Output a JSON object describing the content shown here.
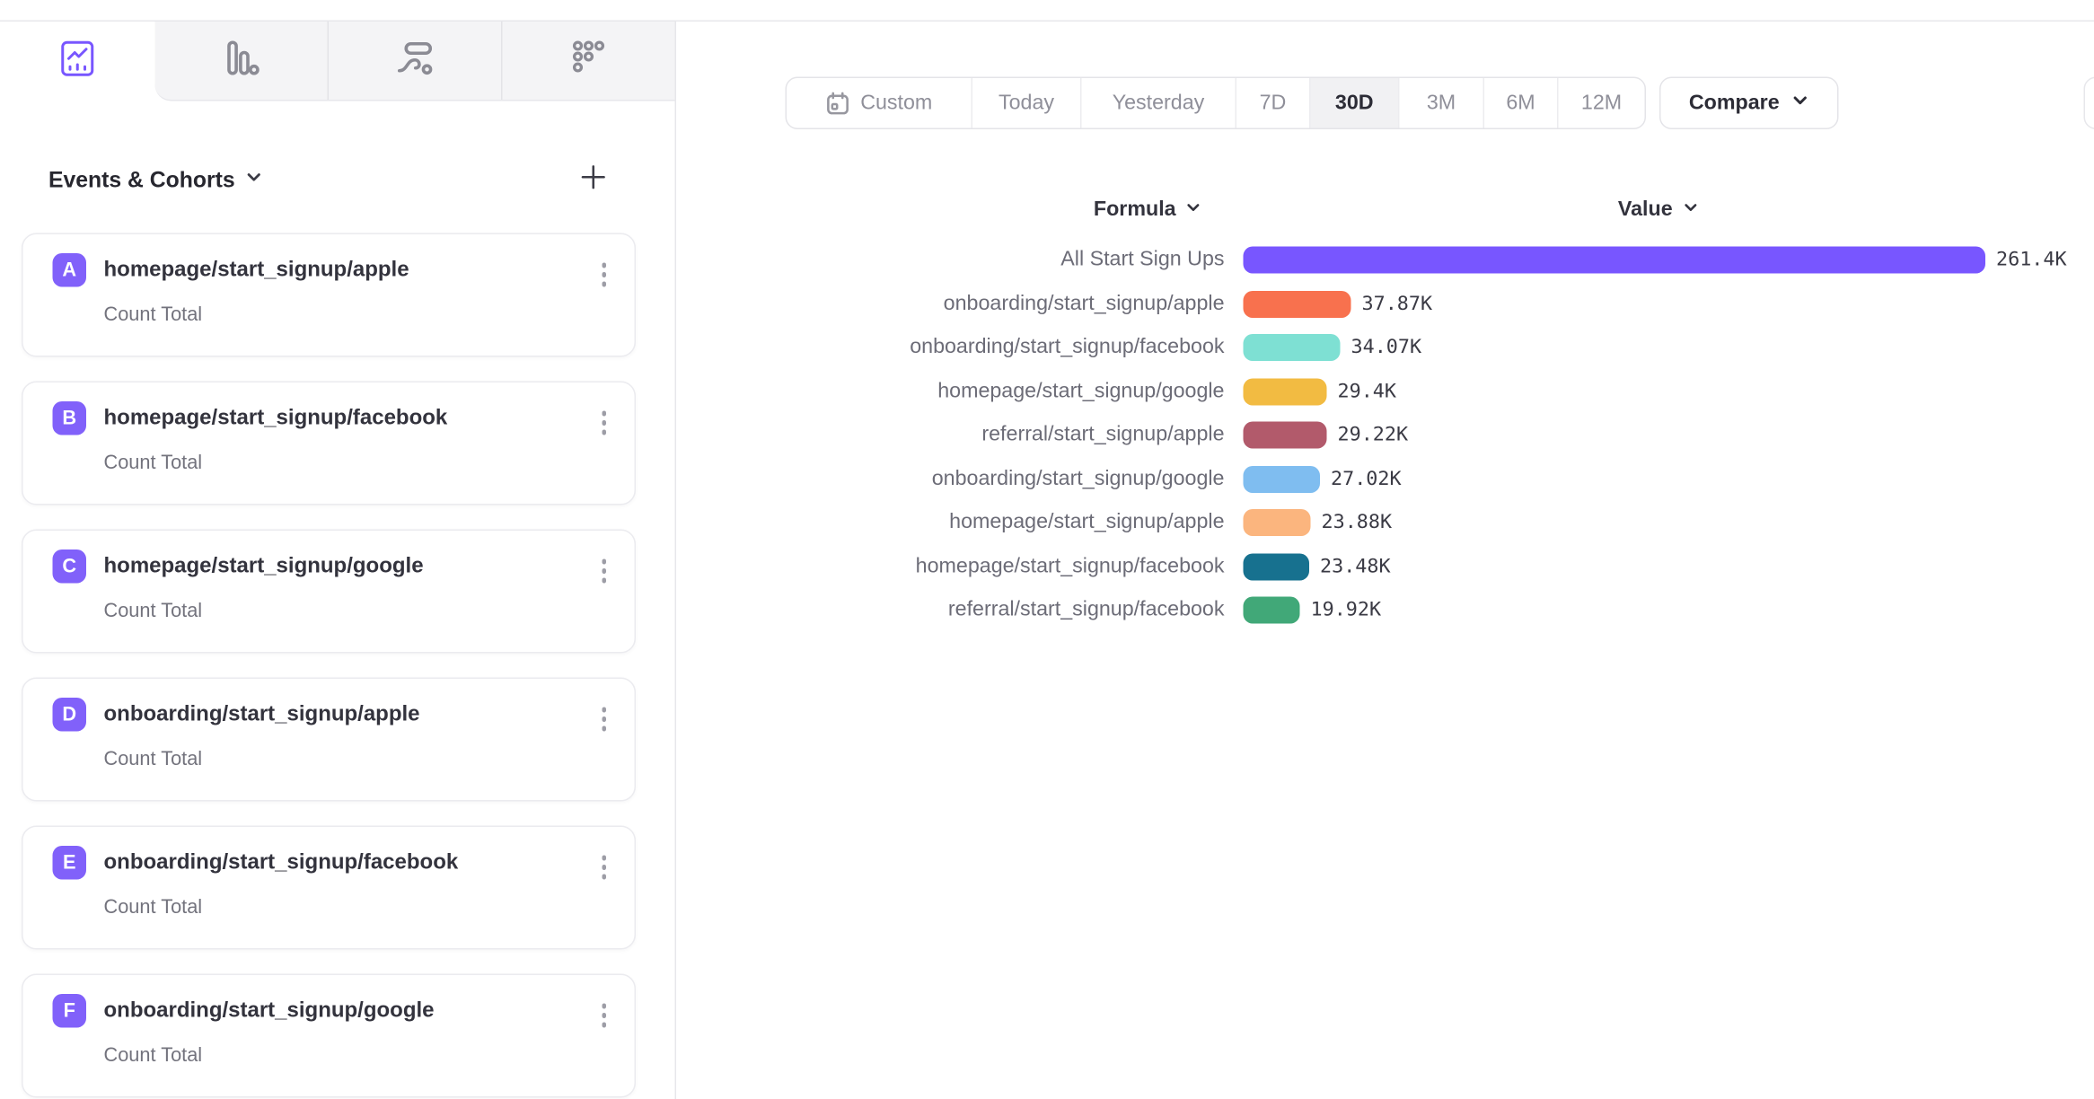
{
  "accent_color": "#7856FF",
  "chart_type_tabs": {
    "items": [
      {
        "icon": "insights-line-chart-icon",
        "active": true
      },
      {
        "icon": "bar-chart-icon",
        "active": false
      },
      {
        "icon": "flow-sankey-icon",
        "active": false
      },
      {
        "icon": "metrics-grid-icon",
        "active": false
      }
    ]
  },
  "sidebar": {
    "title": "Events & Cohorts",
    "cards": [
      {
        "letter": "A",
        "title": "homepage/start_signup/apple",
        "metric": "Count Total"
      },
      {
        "letter": "B",
        "title": "homepage/start_signup/facebook",
        "metric": "Count Total"
      },
      {
        "letter": "C",
        "title": "homepage/start_signup/google",
        "metric": "Count Total"
      },
      {
        "letter": "D",
        "title": "onboarding/start_signup/apple",
        "metric": "Count Total"
      },
      {
        "letter": "E",
        "title": "onboarding/start_signup/facebook",
        "metric": "Count Total"
      },
      {
        "letter": "F",
        "title": "onboarding/start_signup/google",
        "metric": "Count Total"
      }
    ],
    "badge_color": "#8161FA"
  },
  "date_range": {
    "options": [
      "Custom",
      "Today",
      "Yesterday",
      "7D",
      "30D",
      "3M",
      "6M",
      "12M"
    ],
    "active": "30D",
    "compare_label": "Compare"
  },
  "chart": {
    "formula_header": "Formula",
    "value_header": "Value"
  },
  "chart_data": {
    "type": "bar",
    "orientation": "horizontal",
    "title": "",
    "xlabel": "Value",
    "ylabel": "Formula",
    "grid": false,
    "legend": false,
    "xlim": [
      0,
      261400
    ],
    "categories": [
      "All Start Sign Ups",
      "onboarding/start_signup/apple",
      "onboarding/start_signup/facebook",
      "homepage/start_signup/google",
      "referral/start_signup/apple",
      "onboarding/start_signup/google",
      "homepage/start_signup/apple",
      "homepage/start_signup/facebook",
      "referral/start_signup/facebook"
    ],
    "values": [
      261400,
      37870,
      34070,
      29400,
      29220,
      27020,
      23880,
      23480,
      19920
    ],
    "value_labels": [
      "261.4K",
      "37.87K",
      "34.07K",
      "29.4K",
      "29.22K",
      "27.02K",
      "23.88K",
      "23.48K",
      "19.92K"
    ],
    "colors": [
      "#7856FF",
      "#F8714E",
      "#7EE0D3",
      "#F2BB42",
      "#B25A6B",
      "#7FBDF0",
      "#FBB57E",
      "#17718F",
      "#41A878"
    ]
  }
}
